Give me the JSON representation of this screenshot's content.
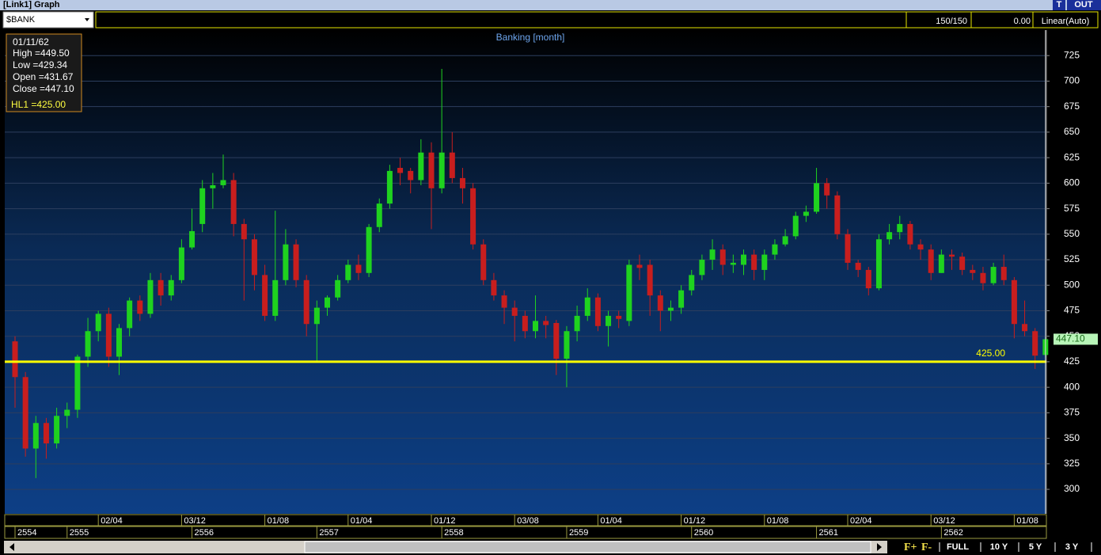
{
  "window": {
    "title": "[Link1] Graph",
    "buttons": [
      "T",
      "OUT"
    ]
  },
  "toolbar": {
    "symbol": "$BANK",
    "count": "150/150",
    "value": "0.00",
    "scale": "Linear(Auto)"
  },
  "info": {
    "date": "01/11/62",
    "lines": [
      "High =449.50",
      "Low  =429.34",
      "Open  =431.67",
      "Close  =447.10"
    ],
    "hl": "HL1 =425.00"
  },
  "footer": {
    "zoom": [
      "F+",
      "F-"
    ],
    "buttons": [
      "FULL",
      "10 Y",
      "5 Y",
      "3 Y"
    ]
  },
  "chart_data": {
    "type": "candlestick",
    "title": "Banking [month]",
    "up_color": "#1fd21f",
    "down_color": "#c81e1e",
    "open": [
      445,
      410,
      340,
      365,
      345,
      372,
      378,
      430,
      455,
      472,
      430,
      458,
      485,
      472,
      505,
      490,
      505,
      537,
      560,
      595,
      598,
      603,
      560,
      545,
      510,
      470,
      505,
      540,
      505,
      462,
      478,
      488,
      505,
      520,
      512,
      557,
      580,
      615,
      612,
      603,
      630,
      595,
      630,
      605,
      595,
      540,
      505,
      490,
      478,
      470,
      455,
      465,
      463,
      428,
      455,
      470,
      488,
      460,
      470,
      465,
      520,
      520,
      490,
      475,
      478,
      495,
      510,
      525,
      535,
      520,
      520,
      530,
      515,
      530,
      540,
      548,
      568,
      572,
      600,
      588,
      550,
      522,
      515,
      497,
      545,
      552,
      560,
      540,
      535,
      512,
      530,
      528,
      515,
      512,
      502,
      518,
      505,
      462,
      455,
      431.67
    ],
    "high": [
      450,
      415,
      372,
      370,
      380,
      385,
      432,
      468,
      475,
      478,
      462,
      488,
      490,
      512,
      512,
      510,
      545,
      575,
      603,
      610,
      628,
      610,
      565,
      550,
      520,
      573,
      555,
      545,
      510,
      485,
      490,
      510,
      525,
      530,
      560,
      585,
      618,
      625,
      615,
      643,
      640,
      712,
      650,
      615,
      600,
      545,
      512,
      495,
      485,
      475,
      490,
      470,
      466,
      460,
      480,
      497,
      492,
      475,
      475,
      525,
      530,
      525,
      495,
      485,
      500,
      515,
      530,
      545,
      540,
      530,
      535,
      535,
      535,
      545,
      555,
      572,
      578,
      615,
      605,
      592,
      555,
      525,
      518,
      550,
      560,
      568,
      563,
      545,
      540,
      535,
      535,
      532,
      520,
      518,
      522,
      530,
      508,
      485,
      458,
      449.5
    ],
    "low": [
      380,
      332,
      311,
      330,
      340,
      360,
      370,
      420,
      445,
      420,
      412,
      450,
      465,
      468,
      480,
      485,
      502,
      535,
      552,
      575,
      595,
      548,
      485,
      495,
      465,
      465,
      500,
      498,
      450,
      425,
      470,
      485,
      502,
      505,
      508,
      552,
      575,
      598,
      590,
      598,
      555,
      590,
      600,
      580,
      535,
      500,
      485,
      462,
      445,
      448,
      448,
      448,
      412,
      400,
      445,
      465,
      455,
      440,
      458,
      460,
      505,
      470,
      455,
      465,
      472,
      490,
      505,
      515,
      510,
      512,
      510,
      505,
      505,
      525,
      538,
      545,
      562,
      570,
      575,
      545,
      515,
      508,
      490,
      495,
      540,
      545,
      535,
      525,
      505,
      512,
      515,
      510,
      505,
      495,
      500,
      500,
      448,
      450,
      418,
      429.34
    ],
    "close": [
      410,
      340,
      365,
      345,
      372,
      378,
      430,
      455,
      472,
      430,
      458,
      485,
      472,
      505,
      490,
      505,
      537,
      553,
      595,
      598,
      603,
      560,
      545,
      510,
      470,
      505,
      540,
      505,
      462,
      478,
      488,
      505,
      520,
      512,
      557,
      580,
      612,
      610,
      603,
      630,
      595,
      630,
      605,
      595,
      540,
      505,
      490,
      478,
      470,
      455,
      465,
      461,
      428,
      455,
      470,
      488,
      460,
      470,
      467,
      520,
      517,
      490,
      475,
      478,
      495,
      510,
      525,
      535,
      520,
      522,
      530,
      515,
      530,
      540,
      548,
      568,
      572,
      600,
      588,
      550,
      522,
      515,
      497,
      545,
      552,
      560,
      540,
      535,
      512,
      530,
      528,
      515,
      512,
      502,
      518,
      505,
      462,
      455,
      431,
      447.1
    ],
    "last_value_label": "447.10",
    "ylim": [
      276,
      750
    ],
    "yticks": [
      300,
      325,
      350,
      375,
      400,
      425,
      450,
      475,
      500,
      525,
      550,
      575,
      600,
      625,
      650,
      675,
      700,
      725
    ],
    "grid": true,
    "hline": {
      "value": 425,
      "label": "425.00",
      "color": "#ffff00"
    },
    "xticks": [
      {
        "value": 8,
        "label": "02/04"
      },
      {
        "value": 16,
        "label": "03/12"
      },
      {
        "value": 24,
        "label": "01/08"
      },
      {
        "value": 32,
        "label": "01/04"
      },
      {
        "value": 40,
        "label": "01/12"
      },
      {
        "value": 48,
        "label": "03/08"
      },
      {
        "value": 56,
        "label": "01/04"
      },
      {
        "value": 64,
        "label": "01/12"
      },
      {
        "value": 72,
        "label": "01/08"
      },
      {
        "value": 80,
        "label": "02/04"
      },
      {
        "value": 88,
        "label": "03/12"
      },
      {
        "value": 96,
        "label": "01/08"
      }
    ],
    "year_ticks": [
      {
        "value": 0,
        "label": "2554"
      },
      {
        "value": 5,
        "label": "2555"
      },
      {
        "value": 17,
        "label": "2556"
      },
      {
        "value": 29,
        "label": "2557"
      },
      {
        "value": 41,
        "label": "2558"
      },
      {
        "value": 53,
        "label": "2559"
      },
      {
        "value": 65,
        "label": "2560"
      },
      {
        "value": 77,
        "label": "2561"
      },
      {
        "value": 89,
        "label": "2562"
      }
    ]
  }
}
